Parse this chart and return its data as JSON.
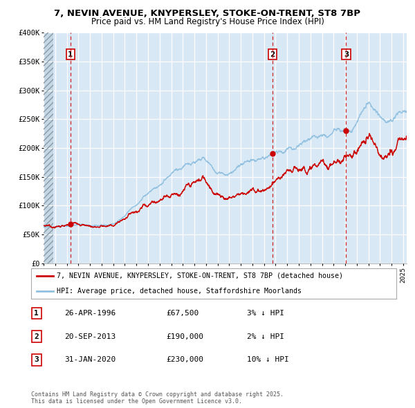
{
  "title": "7, NEVIN AVENUE, KNYPERSLEY, STOKE-ON-TRENT, ST8 7BP",
  "subtitle": "Price paid vs. HM Land Registry's House Price Index (HPI)",
  "legend_line1": "7, NEVIN AVENUE, KNYPERSLEY, STOKE-ON-TRENT, ST8 7BP (detached house)",
  "legend_line2": "HPI: Average price, detached house, Staffordshire Moorlands",
  "ylim": [
    0,
    400000
  ],
  "yticks": [
    0,
    50000,
    100000,
    150000,
    200000,
    250000,
    300000,
    350000,
    400000
  ],
  "ytick_labels": [
    "£0",
    "£50K",
    "£100K",
    "£150K",
    "£200K",
    "£250K",
    "£300K",
    "£350K",
    "£400K"
  ],
  "background_color": "#d9e8f5",
  "grid_color": "#ffffff",
  "red_color": "#cc0000",
  "blue_color": "#90c0e0",
  "hatch_color": "#c0cfd8",
  "sale1_yr": 1996.32,
  "sale1_price": 67500,
  "sale2_yr": 2013.72,
  "sale2_price": 190000,
  "sale3_yr": 2020.08,
  "sale3_price": 230000,
  "footer": "Contains HM Land Registry data © Crown copyright and database right 2025.\nThis data is licensed under the Open Government Licence v3.0.",
  "table": [
    {
      "num": "1",
      "date": "26-APR-1996",
      "price": "£67,500",
      "pct": "3% ↓ HPI"
    },
    {
      "num": "2",
      "date": "20-SEP-2013",
      "price": "£190,000",
      "pct": "2% ↓ HPI"
    },
    {
      "num": "3",
      "date": "31-JAN-2020",
      "price": "£230,000",
      "pct": "10% ↓ HPI"
    }
  ]
}
